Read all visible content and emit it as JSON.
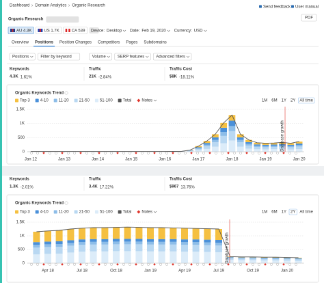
{
  "breadcrumb": [
    "Dashboard",
    "Domain Analytics",
    "Organic Research"
  ],
  "header": {
    "title": "Organic Research",
    "links": [
      "Send feedback",
      "User manual"
    ],
    "pdf": "PDF"
  },
  "databases": [
    "AU 4.3K",
    "US 1.7K",
    "CA 539"
  ],
  "active_database": 0,
  "settings": [
    {
      "label": "Device:",
      "value": "Desktop"
    },
    {
      "label": "Date:",
      "value": "Feb 19, 2020"
    },
    {
      "label": "Currency:",
      "value": "USD"
    }
  ],
  "tabs": [
    "Overview",
    "Positions",
    "Position Changes",
    "Competitors",
    "Pages",
    "Subdomains"
  ],
  "active_tab": 1,
  "filters": [
    "Positions",
    "Filter by keyword",
    "Volume",
    "SERP features",
    "Advanced filters"
  ],
  "metric_panels": [
    [
      {
        "label": "Keywords",
        "value": "4.3K",
        "change": "1.61%",
        "direction": "up"
      },
      {
        "label": "Traffic",
        "value": "21K",
        "change": "-2.84%",
        "direction": "down"
      },
      {
        "label": "Traffic Cost",
        "value": "$8K",
        "change": "-18.11%",
        "direction": "down"
      }
    ],
    [
      {
        "label": "Keywords",
        "value": "1.3K",
        "change": "-2.01%",
        "direction": "down"
      },
      {
        "label": "Traffic",
        "value": "3.4K",
        "change": "17.22%",
        "direction": "up"
      },
      {
        "label": "Traffic Cost",
        "value": "$967",
        "change": "13.76%",
        "direction": "up"
      }
    ]
  ],
  "chart_data": [
    {
      "type": "bar",
      "stacked": true,
      "title": "Organic Keywords Trend",
      "notes": "Notes",
      "ranges": [
        "1M",
        "6M",
        "1Y",
        "2Y",
        "All time"
      ],
      "active_range": 4,
      "grid": true,
      "xlim": [
        2011.9,
        2020.15
      ],
      "xticks": [
        {
          "value": 2012,
          "label": "Jan 12"
        },
        {
          "value": 2013,
          "label": "Jan 13"
        },
        {
          "value": 2014,
          "label": "Jan 14"
        },
        {
          "value": 2015,
          "label": "Jan 15"
        },
        {
          "value": 2016,
          "label": "Jan 16"
        },
        {
          "value": 2017,
          "label": "Jan 17"
        },
        {
          "value": 2018,
          "label": "Jan 18"
        },
        {
          "value": 2019,
          "label": "Jan 19"
        },
        {
          "value": 2020,
          "label": "Jan 20"
        }
      ],
      "ylim": [
        0,
        1500
      ],
      "yticks": [
        0,
        500,
        {
          "value": 1000,
          "label": "1K"
        },
        {
          "value": 1500,
          "label": "1.5K"
        }
      ],
      "x": [
        2012,
        2012.5,
        2013,
        2013.5,
        2014,
        2014.5,
        2015,
        2015.5,
        2016,
        2016.25,
        2016.5,
        2016.75,
        2017,
        2017.25,
        2017.5,
        2017.75,
        2018,
        2018.25,
        2018.5,
        2018.75,
        2019,
        2019.25,
        2019.5,
        2019.75,
        2020
      ],
      "series": [
        {
          "name": "Top 3",
          "color": "#f5c041",
          "values": [
            2,
            2,
            2,
            2,
            2,
            2,
            2,
            2,
            2,
            2,
            3,
            10,
            40,
            70,
            110,
            170,
            200,
            110,
            80,
            60,
            55,
            55,
            60,
            55,
            70
          ]
        },
        {
          "name": "4-10",
          "color": "#4a90d9",
          "values": [
            2,
            2,
            2,
            2,
            2,
            2,
            2,
            2,
            2,
            2,
            3,
            10,
            30,
            60,
            90,
            150,
            190,
            90,
            60,
            45,
            45,
            45,
            50,
            45,
            55
          ]
        },
        {
          "name": "11-20",
          "color": "#8dbde8",
          "values": [
            2,
            2,
            2,
            2,
            2,
            2,
            2,
            2,
            2,
            2,
            3,
            10,
            30,
            50,
            80,
            140,
            180,
            80,
            60,
            45,
            40,
            40,
            45,
            40,
            50
          ]
        },
        {
          "name": "21-50",
          "color": "#b9d8f2",
          "values": [
            2,
            2,
            2,
            2,
            2,
            2,
            2,
            2,
            2,
            3,
            3,
            15,
            50,
            100,
            160,
            260,
            330,
            160,
            110,
            80,
            75,
            80,
            85,
            80,
            90
          ]
        },
        {
          "name": "51-100",
          "color": "#dcecf9",
          "values": [
            2,
            2,
            2,
            2,
            2,
            2,
            2,
            2,
            2,
            3,
            3,
            15,
            50,
            100,
            180,
            300,
            400,
            180,
            110,
            90,
            85,
            90,
            90,
            80,
            95
          ]
        },
        {
          "name": "Total",
          "color": "#555555",
          "type": "line",
          "values": [
            10,
            10,
            10,
            10,
            10,
            10,
            10,
            10,
            10,
            12,
            15,
            60,
            200,
            380,
            620,
            1020,
            1300,
            620,
            420,
            320,
            300,
            310,
            330,
            300,
            360
          ]
        }
      ],
      "annotations": [
        {
          "text": "Database growth",
          "x": 2019.58
        }
      ]
    },
    {
      "type": "bar",
      "stacked": true,
      "title": "Organic Keywords Trend",
      "notes": "Notes",
      "ranges": [
        "1M",
        "6M",
        "1Y",
        "2Y",
        "All time"
      ],
      "active_range": 3,
      "grid": true,
      "xlim": [
        2018.1,
        2020.125
      ],
      "xticks": [
        {
          "value": 2018.25,
          "label": "Apr 18"
        },
        {
          "value": 2018.5,
          "label": "Jul 18"
        },
        {
          "value": 2018.75,
          "label": "Oct 18"
        },
        {
          "value": 2019,
          "label": "Jan 19"
        },
        {
          "value": 2019.25,
          "label": "Apr 19"
        },
        {
          "value": 2019.5,
          "label": "Jul 19"
        },
        {
          "value": 2019.75,
          "label": "Oct 19"
        },
        {
          "value": 2020,
          "label": "Jan 20"
        }
      ],
      "ylim": [
        0,
        1500
      ],
      "yticks": [
        0,
        500,
        {
          "value": 1000,
          "label": "1K"
        },
        {
          "value": 1500,
          "label": "1.5K"
        }
      ],
      "x": [
        2018.167,
        2018.25,
        2018.333,
        2018.417,
        2018.5,
        2018.583,
        2018.667,
        2018.75,
        2018.833,
        2018.917,
        2019,
        2019.083,
        2019.167,
        2019.25,
        2019.333,
        2019.417,
        2019.5,
        2019.583,
        2019.667,
        2019.75,
        2019.833,
        2019.917,
        2020,
        2020.083
      ],
      "series": [
        {
          "name": "Top 3",
          "color": "#f5c041",
          "values": [
            380,
            390,
            400,
            410,
            410,
            420,
            420,
            420,
            430,
            420,
            420,
            420,
            410,
            410,
            400,
            400,
            400,
            20,
            20,
            20,
            20,
            20,
            20,
            20
          ]
        },
        {
          "name": "4-10",
          "color": "#4a90d9",
          "values": [
            100,
            100,
            100,
            100,
            100,
            100,
            100,
            100,
            100,
            100,
            100,
            100,
            100,
            100,
            100,
            100,
            100,
            20,
            20,
            20,
            20,
            20,
            20,
            20
          ]
        },
        {
          "name": "11-20",
          "color": "#8dbde8",
          "values": [
            100,
            100,
            100,
            100,
            100,
            100,
            100,
            100,
            100,
            100,
            100,
            100,
            100,
            100,
            100,
            100,
            100,
            20,
            20,
            20,
            20,
            20,
            20,
            20
          ]
        },
        {
          "name": "21-50",
          "color": "#b9d8f2",
          "values": [
            250,
            250,
            250,
            250,
            250,
            250,
            250,
            250,
            250,
            250,
            250,
            250,
            250,
            250,
            250,
            250,
            250,
            60,
            60,
            60,
            60,
            60,
            60,
            60
          ]
        },
        {
          "name": "51-100",
          "color": "#dcecf9",
          "values": [
            320,
            340,
            350,
            390,
            420,
            430,
            430,
            440,
            440,
            440,
            430,
            430,
            430,
            420,
            420,
            410,
            400,
            120,
            110,
            110,
            100,
            100,
            90,
            80
          ]
        },
        {
          "name": "Total",
          "color": "#555555",
          "type": "line",
          "values": [
            1150,
            1180,
            1200,
            1250,
            1280,
            1300,
            1300,
            1310,
            1320,
            1310,
            1300,
            1300,
            1290,
            1280,
            1270,
            1260,
            1250,
            240,
            230,
            230,
            220,
            220,
            210,
            200
          ]
        }
      ],
      "annotations": [
        {
          "text": "Database growth",
          "x": 2019.58
        }
      ]
    }
  ]
}
